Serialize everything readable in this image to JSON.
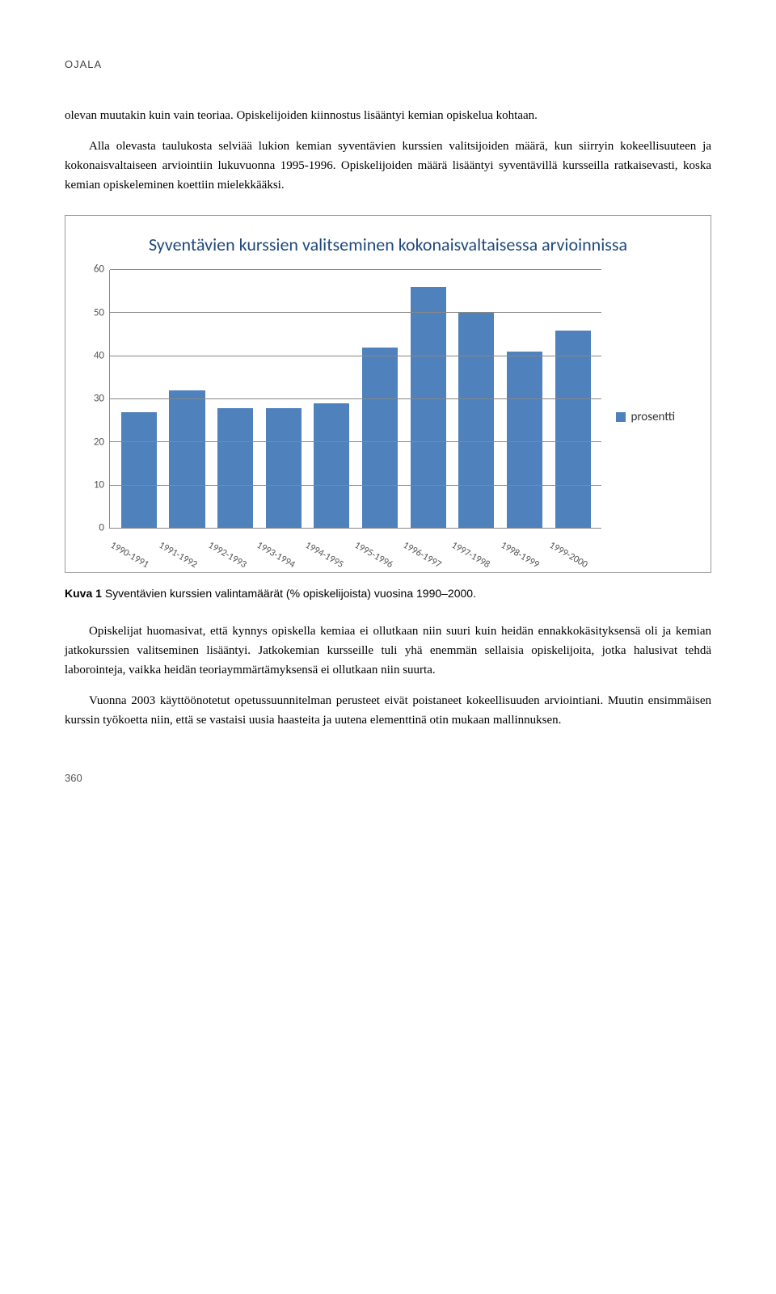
{
  "header": {
    "author": "OJALA"
  },
  "body": {
    "p1": "olevan muutakin kuin vain teoriaa. Opiskelijoiden kiinnostus lisääntyi kemian opiskelua kohtaan.",
    "p2": "Alla olevasta taulukosta selviää lukion kemian syventävien kurssien valitsijoiden määrä, kun siirryin kokeellisuuteen ja kokonaisvaltaiseen arviointiin lukuvuonna 1995-1996. Opiskelijoiden määrä lisääntyi syventävillä kursseilla ratkaisevasti, koska kemian opiskeleminen koettiin mielekkääksi.",
    "p3": "Opiskelijat huomasivat, että kynnys opiskella kemiaa ei ollutkaan niin suuri kuin heidän ennakkokäsityksensä oli ja kemian jatkokurssien valitseminen lisääntyi. Jatkokemian kursseille tuli yhä enemmän sellaisia opiskelijoita, jotka halusivat tehdä laborointeja, vaikka heidän teoriaymmärtämyksensä ei ollutkaan niin suurta.",
    "p4": "Vuonna 2003 käyttöönotetut opetussuunnitelman perusteet eivät poistaneet kokeellisuuden arviointiani. Muutin ensimmäisen kurssin työkoetta niin, että se vastaisi uusia haasteita ja uutena elementtinä otin mukaan mallinnuksen."
  },
  "chart": {
    "type": "bar",
    "title": "Syventävien kurssien valitseminen kokonaisvaltaisessa arvioinnissa",
    "categories": [
      "1990-1991",
      "1991-1992",
      "1992-1993",
      "1993-1994",
      "1994-1995",
      "1995-1996",
      "1996-1997",
      "1997-1998",
      "1998-1999",
      "1999-2000"
    ],
    "values": [
      27,
      32,
      28,
      28,
      29,
      42,
      56,
      50,
      41,
      46
    ],
    "legend_label": "prosentti",
    "bar_color": "#4f81bd",
    "title_color": "#1f497d",
    "grid_color": "#888888",
    "background_color": "#ffffff",
    "ylim": [
      0,
      60
    ],
    "ytick_step": 10,
    "yticks": [
      0,
      10,
      20,
      30,
      40,
      50,
      60
    ],
    "title_fontsize": 22,
    "axis_fontsize": 13,
    "bar_width": 0.74
  },
  "caption": {
    "label": "Kuva 1",
    "text": "Syventävien kurssien valintamäärät (% opiskelijoista) vuosina 1990–2000."
  },
  "footer": {
    "page": "360"
  }
}
